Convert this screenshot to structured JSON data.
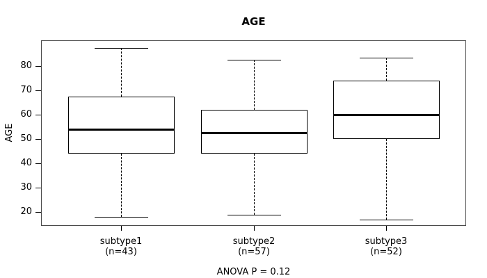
{
  "figure": {
    "background": "#ffffff",
    "line_color": "#000000",
    "frame_color": "#4a4a4a"
  },
  "chart_data": {
    "type": "boxplot",
    "title": "AGE",
    "ylabel": "AGE",
    "xlabel": "",
    "ylim": [
      14.3,
      90.6
    ],
    "yticks": [
      20,
      30,
      40,
      50,
      60,
      70,
      80
    ],
    "grid": false,
    "legend": null,
    "annotation": "ANOVA P = 0.12",
    "groups": [
      {
        "label": "subtype1",
        "sublabel": "(n=43)",
        "n": 43,
        "whisker_low": 18,
        "q1": 44,
        "median": 54,
        "q3": 67.5,
        "whisker_high": 87.5
      },
      {
        "label": "subtype2",
        "sublabel": "(n=57)",
        "n": 57,
        "whisker_low": 19,
        "q1": 44,
        "median": 52.5,
        "q3": 62,
        "whisker_high": 82.5
      },
      {
        "label": "subtype3",
        "sublabel": "(n=52)",
        "n": 52,
        "whisker_low": 17,
        "q1": 50,
        "median": 60,
        "q3": 74,
        "whisker_high": 83.5
      }
    ]
  }
}
